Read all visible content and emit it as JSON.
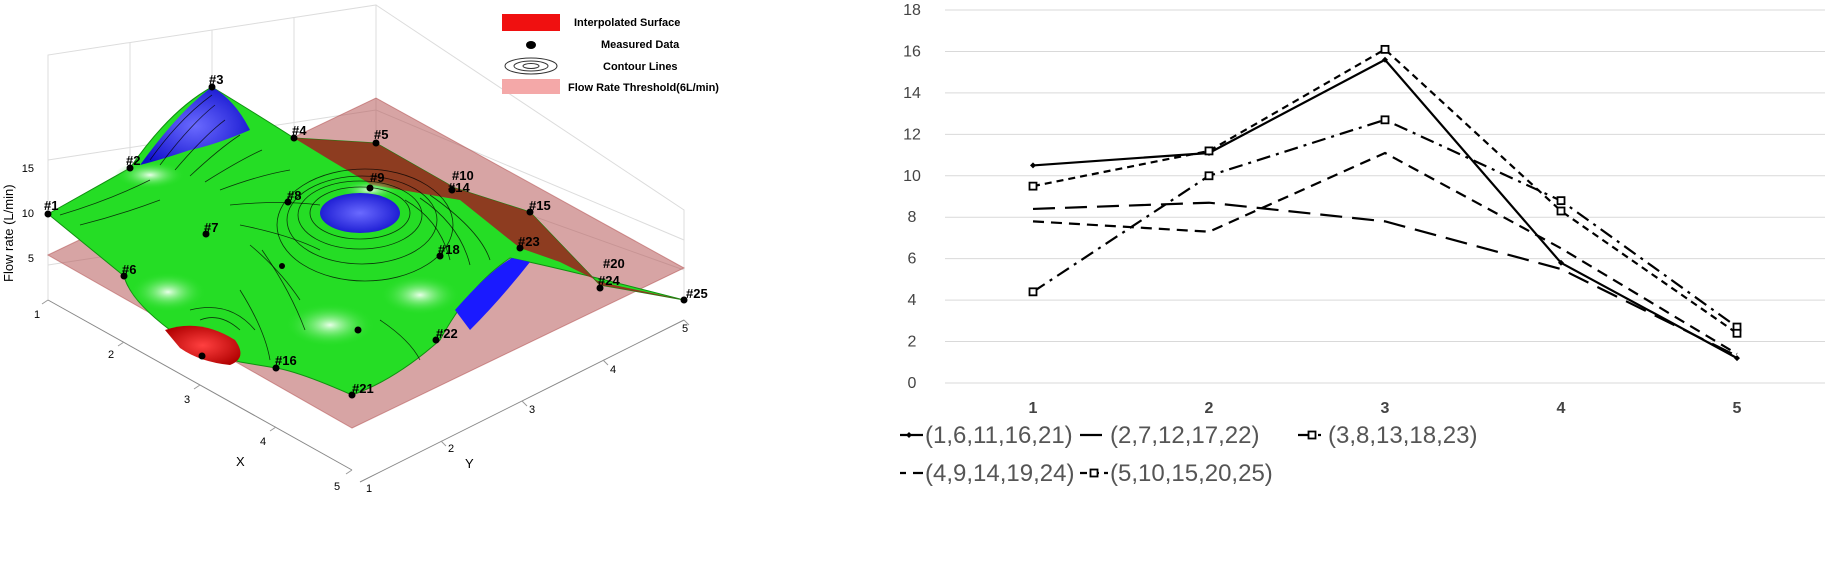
{
  "surface_chart": {
    "legend": {
      "surface": "Interpolated Surface",
      "measured": "Measured Data",
      "contours": "Contour Lines",
      "threshold": "Flow Rate Threshold(6L/min)"
    },
    "z_axis_label": "Flow rate (L/min)",
    "x_axis_label": "X",
    "y_axis_label": "Y",
    "z_ticks": [
      "15",
      "10",
      "5"
    ],
    "x_ticks": [
      "1",
      "2",
      "3",
      "4",
      "5"
    ],
    "y_ticks": [
      "1",
      "2",
      "3",
      "4",
      "5"
    ],
    "point_labels": [
      "#1",
      "#2",
      "#3",
      "#4",
      "#5",
      "#6",
      "#7",
      "#8",
      "#9",
      "#10",
      "#14",
      "#15",
      "#16",
      "#18",
      "#20",
      "#21",
      "#22",
      "#23",
      "#24",
      "#25"
    ],
    "colors": {
      "surface_green": "#22dd22",
      "high_blue": "#1a1aff",
      "low_red": "#e01010",
      "threshold": "#c47a7a"
    }
  },
  "chart_data": {
    "type": "line",
    "categories": [
      "1",
      "2",
      "3",
      "4",
      "5"
    ],
    "ylim": [
      0,
      18
    ],
    "yticks": [
      "0",
      "2",
      "4",
      "6",
      "8",
      "10",
      "12",
      "14",
      "16",
      "18"
    ],
    "series": [
      {
        "name": "(1,6,11,16,21)",
        "values": [
          10.5,
          11.1,
          15.6,
          5.8,
          1.2
        ],
        "dash": "solid",
        "marker": "diamond"
      },
      {
        "name": "(2,7,12,17,22)",
        "values": [
          8.4,
          8.7,
          7.8,
          5.5,
          1.3
        ],
        "dash": "longdash",
        "marker": "none"
      },
      {
        "name": "(3,8,13,18,23)",
        "values": [
          4.4,
          10.0,
          12.7,
          8.8,
          2.7
        ],
        "dash": "dashdot",
        "marker": "square"
      },
      {
        "name": "(4,9,14,19,24)",
        "values": [
          7.8,
          7.3,
          11.1,
          6.5,
          1.4
        ],
        "dash": "dash",
        "marker": "none"
      },
      {
        "name": "(5,10,15,20,25)",
        "values": [
          9.5,
          11.2,
          16.1,
          8.3,
          2.4
        ],
        "dash": "shortdash",
        "marker": "square"
      }
    ]
  }
}
